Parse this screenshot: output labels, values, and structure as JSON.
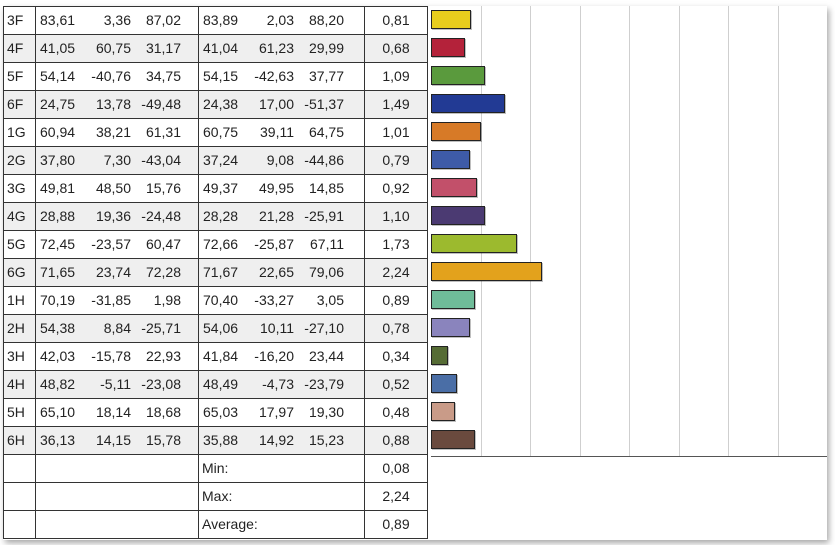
{
  "rows": [
    {
      "id": "3F",
      "l1": [
        "83,61",
        "3,36",
        "87,02"
      ],
      "l2": [
        "83,89",
        "2,03",
        "88,20"
      ],
      "de": "0,81",
      "value": 0.81,
      "color": "#e8cd1d"
    },
    {
      "id": "4F",
      "l1": [
        "41,05",
        "60,75",
        "31,17"
      ],
      "l2": [
        "41,04",
        "61,23",
        "29,99"
      ],
      "de": "0,68",
      "value": 0.68,
      "color": "#b4223a"
    },
    {
      "id": "5F",
      "l1": [
        "54,14",
        "-40,76",
        "34,75"
      ],
      "l2": [
        "54,15",
        "-42,63",
        "37,77"
      ],
      "de": "1,09",
      "value": 1.09,
      "color": "#5a9a3d"
    },
    {
      "id": "6F",
      "l1": [
        "24,75",
        "13,78",
        "-49,48"
      ],
      "l2": [
        "24,38",
        "17,00",
        "-51,37"
      ],
      "de": "1,49",
      "value": 1.49,
      "color": "#223a94"
    },
    {
      "id": "1G",
      "l1": [
        "60,94",
        "38,21",
        "61,31"
      ],
      "l2": [
        "60,75",
        "39,11",
        "64,75"
      ],
      "de": "1,01",
      "value": 1.01,
      "color": "#d77a27"
    },
    {
      "id": "2G",
      "l1": [
        "37,80",
        "7,30",
        "-43,04"
      ],
      "l2": [
        "37,24",
        "9,08",
        "-44,86"
      ],
      "de": "0,79",
      "value": 0.79,
      "color": "#3e5ba8"
    },
    {
      "id": "3G",
      "l1": [
        "49,81",
        "48,50",
        "15,76"
      ],
      "l2": [
        "49,37",
        "49,95",
        "14,85"
      ],
      "de": "0,92",
      "value": 0.92,
      "color": "#c2506a"
    },
    {
      "id": "4G",
      "l1": [
        "28,88",
        "19,36",
        "-24,48"
      ],
      "l2": [
        "28,28",
        "21,28",
        "-25,91"
      ],
      "de": "1,10",
      "value": 1.1,
      "color": "#4b3a72"
    },
    {
      "id": "5G",
      "l1": [
        "72,45",
        "-23,57",
        "60,47"
      ],
      "l2": [
        "72,66",
        "-25,87",
        "67,11"
      ],
      "de": "1,73",
      "value": 1.73,
      "color": "#9cba2e"
    },
    {
      "id": "6G",
      "l1": [
        "71,65",
        "23,74",
        "72,28"
      ],
      "l2": [
        "71,67",
        "22,65",
        "79,06"
      ],
      "de": "2,24",
      "value": 2.24,
      "color": "#e3a21c"
    },
    {
      "id": "1H",
      "l1": [
        "70,19",
        "-31,85",
        "1,98"
      ],
      "l2": [
        "70,40",
        "-33,27",
        "3,05"
      ],
      "de": "0,89",
      "value": 0.89,
      "color": "#6fbc99"
    },
    {
      "id": "2H",
      "l1": [
        "54,38",
        "8,84",
        "-25,71"
      ],
      "l2": [
        "54,06",
        "10,11",
        "-27,10"
      ],
      "de": "0,78",
      "value": 0.78,
      "color": "#8a84bd"
    },
    {
      "id": "3H",
      "l1": [
        "42,03",
        "-15,78",
        "22,93"
      ],
      "l2": [
        "41,84",
        "-16,20",
        "23,44"
      ],
      "de": "0,34",
      "value": 0.34,
      "color": "#556b34"
    },
    {
      "id": "4H",
      "l1": [
        "48,82",
        "-5,11",
        "-23,08"
      ],
      "l2": [
        "48,49",
        "-4,73",
        "-23,79"
      ],
      "de": "0,52",
      "value": 0.52,
      "color": "#4a6ea6"
    },
    {
      "id": "5H",
      "l1": [
        "65,10",
        "18,14",
        "18,68"
      ],
      "l2": [
        "65,03",
        "17,97",
        "19,30"
      ],
      "de": "0,48",
      "value": 0.48,
      "color": "#c99b88"
    },
    {
      "id": "6H",
      "l1": [
        "36,13",
        "14,15",
        "15,78"
      ],
      "l2": [
        "35,88",
        "14,92",
        "15,23"
      ],
      "de": "0,88",
      "value": 0.88,
      "color": "#6a4a3e"
    }
  ],
  "stats": [
    {
      "label": "Min:",
      "value": "0,08"
    },
    {
      "label": "Max:",
      "value": "2,24"
    },
    {
      "label": "Average:",
      "value": "0,89"
    }
  ],
  "chart_data": {
    "type": "bar",
    "orientation": "horizontal",
    "categories": [
      "3F",
      "4F",
      "5F",
      "6F",
      "1G",
      "2G",
      "3G",
      "4G",
      "5G",
      "6G",
      "1H",
      "2H",
      "3H",
      "4H",
      "5H",
      "6H"
    ],
    "values": [
      0.81,
      0.68,
      1.09,
      1.49,
      1.01,
      0.79,
      0.92,
      1.1,
      1.73,
      2.24,
      0.89,
      0.78,
      0.34,
      0.52,
      0.48,
      0.88
    ],
    "xlim": [
      0,
      8
    ],
    "grid": true
  }
}
